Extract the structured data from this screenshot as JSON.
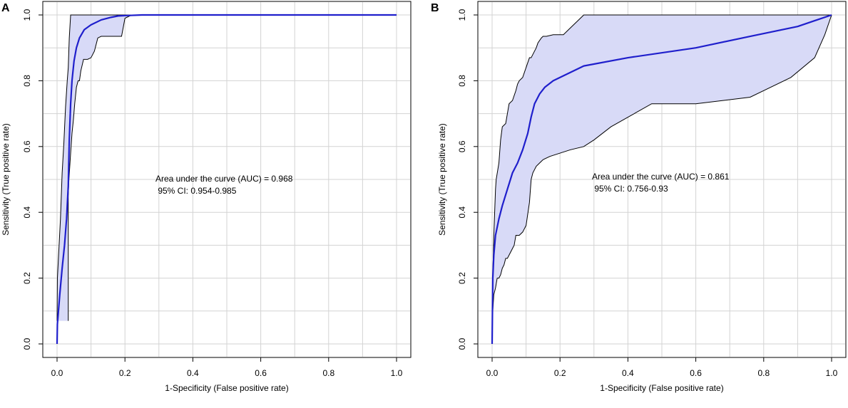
{
  "colors": {
    "grid": "#d3d3d3",
    "band_fill": "#d8daf7",
    "band_stroke": "#000000",
    "curve": "#1f1fcc",
    "frame": "#000000"
  },
  "chart_data": [
    {
      "panel_label": "A",
      "type": "line",
      "xlabel": "1-Specificity (False positive rate)",
      "ylabel": "Sensitivity (True positive rate)",
      "xlim": [
        0,
        1
      ],
      "ylim": [
        0,
        1
      ],
      "x_ticks": [
        0,
        0.2,
        0.4,
        0.6,
        0.8,
        1
      ],
      "x_tick_labels": [
        "0.0",
        "0.2",
        "0.4",
        "0.6",
        "0.8",
        "1.0"
      ],
      "y_ticks": [
        0,
        0.2,
        0.4,
        0.6,
        0.8,
        1
      ],
      "y_tick_labels": [
        "0.0",
        "0.2",
        "0.4",
        "0.6",
        "0.8",
        "1.0"
      ],
      "grid": true,
      "annotation_lines": [
        "Area under the curve (AUC) = 0.968",
        " 95% CI: 0.954-0.985"
      ],
      "series": [
        {
          "name": "ROC curve",
          "x": [
            0,
            0.001,
            0.008,
            0.015,
            0.022,
            0.028,
            0.033,
            0.036,
            0.04,
            0.044,
            0.05,
            0.057,
            0.066,
            0.08,
            0.1,
            0.13,
            0.16,
            0.18,
            0.2,
            0.25,
            0.4,
            0.6,
            0.8,
            1
          ],
          "y": [
            0,
            0.06,
            0.15,
            0.23,
            0.3,
            0.38,
            0.48,
            0.62,
            0.73,
            0.8,
            0.86,
            0.9,
            0.93,
            0.955,
            0.97,
            0.985,
            0.993,
            0.997,
            0.998,
            1,
            1,
            1,
            1,
            1
          ]
        },
        {
          "name": "CI upper",
          "x": [
            0,
            0.001,
            0.005,
            0.01,
            0.015,
            0.02,
            0.025,
            0.03,
            0.033,
            0.036,
            0.04,
            0.042,
            1
          ],
          "y": [
            0.07,
            0.2,
            0.28,
            0.38,
            0.52,
            0.61,
            0.72,
            0.8,
            0.84,
            0.93,
            1,
            1,
            1
          ]
        },
        {
          "name": "CI lower",
          "x": [
            0.033,
            0.033,
            0.035,
            0.04,
            0.044,
            0.048,
            0.052,
            0.057,
            0.062,
            0.066,
            0.07,
            0.078,
            0.08,
            0.085,
            0.09,
            0.1,
            0.11,
            0.12,
            0.13,
            0.14,
            0.16,
            0.17,
            0.18,
            0.19,
            0.2,
            0.22,
            0.25,
            1
          ],
          "y": [
            0.07,
            0.45,
            0.5,
            0.58,
            0.64,
            0.68,
            0.73,
            0.78,
            0.8,
            0.8,
            0.83,
            0.865,
            0.865,
            0.865,
            0.865,
            0.87,
            0.89,
            0.93,
            0.935,
            0.935,
            0.935,
            0.935,
            0.935,
            0.935,
            0.99,
            1,
            1,
            1
          ]
        }
      ]
    },
    {
      "panel_label": "B",
      "type": "line",
      "xlabel": "1-Specificity (False positive rate)",
      "ylabel": "Sensitivity (True positive rate)",
      "xlim": [
        0,
        1
      ],
      "ylim": [
        0,
        1
      ],
      "x_ticks": [
        0,
        0.2,
        0.4,
        0.6,
        0.8,
        1
      ],
      "x_tick_labels": [
        "0.0",
        "0.2",
        "0.4",
        "0.6",
        "0.8",
        "1.0"
      ],
      "y_ticks": [
        0,
        0.2,
        0.4,
        0.6,
        0.8,
        1
      ],
      "y_tick_labels": [
        "0.0",
        "0.2",
        "0.4",
        "0.6",
        "0.8",
        "1.0"
      ],
      "grid": true,
      "annotation_lines": [
        "Area under the curve (AUC) = 0.861",
        " 95% CI: 0.756-0.93"
      ],
      "series": [
        {
          "name": "ROC curve",
          "x": [
            0,
            0.002,
            0.005,
            0.01,
            0.02,
            0.03,
            0.045,
            0.06,
            0.075,
            0.09,
            0.105,
            0.115,
            0.125,
            0.14,
            0.155,
            0.18,
            0.2,
            0.27,
            0.4,
            0.6,
            0.76,
            0.9,
            1
          ],
          "y": [
            0,
            0.2,
            0.27,
            0.33,
            0.38,
            0.42,
            0.47,
            0.52,
            0.55,
            0.59,
            0.64,
            0.69,
            0.73,
            0.76,
            0.78,
            0.8,
            0.81,
            0.845,
            0.87,
            0.9,
            0.935,
            0.965,
            1
          ]
        },
        {
          "name": "CI upper",
          "x": [
            0,
            0.002,
            0.005,
            0.01,
            0.012,
            0.02,
            0.025,
            0.03,
            0.04,
            0.045,
            0.05,
            0.06,
            0.07,
            0.075,
            0.08,
            0.09,
            0.1,
            0.11,
            0.115,
            0.12,
            0.13,
            0.135,
            0.145,
            0.15,
            0.16,
            0.18,
            0.21,
            0.225,
            0.25,
            0.27,
            0.3,
            0.5,
            0.8,
            1
          ],
          "y": [
            0.07,
            0.21,
            0.33,
            0.47,
            0.5,
            0.55,
            0.62,
            0.66,
            0.67,
            0.7,
            0.73,
            0.74,
            0.77,
            0.79,
            0.8,
            0.81,
            0.84,
            0.87,
            0.87,
            0.88,
            0.9,
            0.915,
            0.93,
            0.935,
            0.935,
            0.94,
            0.94,
            0.955,
            0.98,
            1,
            1,
            1,
            1,
            1
          ]
        },
        {
          "name": "CI lower",
          "x": [
            0.002,
            0.005,
            0.01,
            0.015,
            0.02,
            0.025,
            0.03,
            0.035,
            0.04,
            0.045,
            0.05,
            0.06,
            0.065,
            0.07,
            0.08,
            0.09,
            0.1,
            0.11,
            0.115,
            0.12,
            0.13,
            0.14,
            0.15,
            0.17,
            0.2,
            0.23,
            0.27,
            0.3,
            0.35,
            0.47,
            0.6,
            0.76,
            0.88,
            0.95,
            0.98,
            1
          ],
          "y": [
            0.1,
            0.15,
            0.17,
            0.2,
            0.2,
            0.21,
            0.23,
            0.24,
            0.26,
            0.26,
            0.27,
            0.29,
            0.3,
            0.33,
            0.33,
            0.34,
            0.36,
            0.43,
            0.5,
            0.52,
            0.54,
            0.55,
            0.56,
            0.57,
            0.58,
            0.59,
            0.6,
            0.62,
            0.66,
            0.73,
            0.73,
            0.75,
            0.81,
            0.87,
            0.94,
            1
          ]
        }
      ]
    }
  ]
}
